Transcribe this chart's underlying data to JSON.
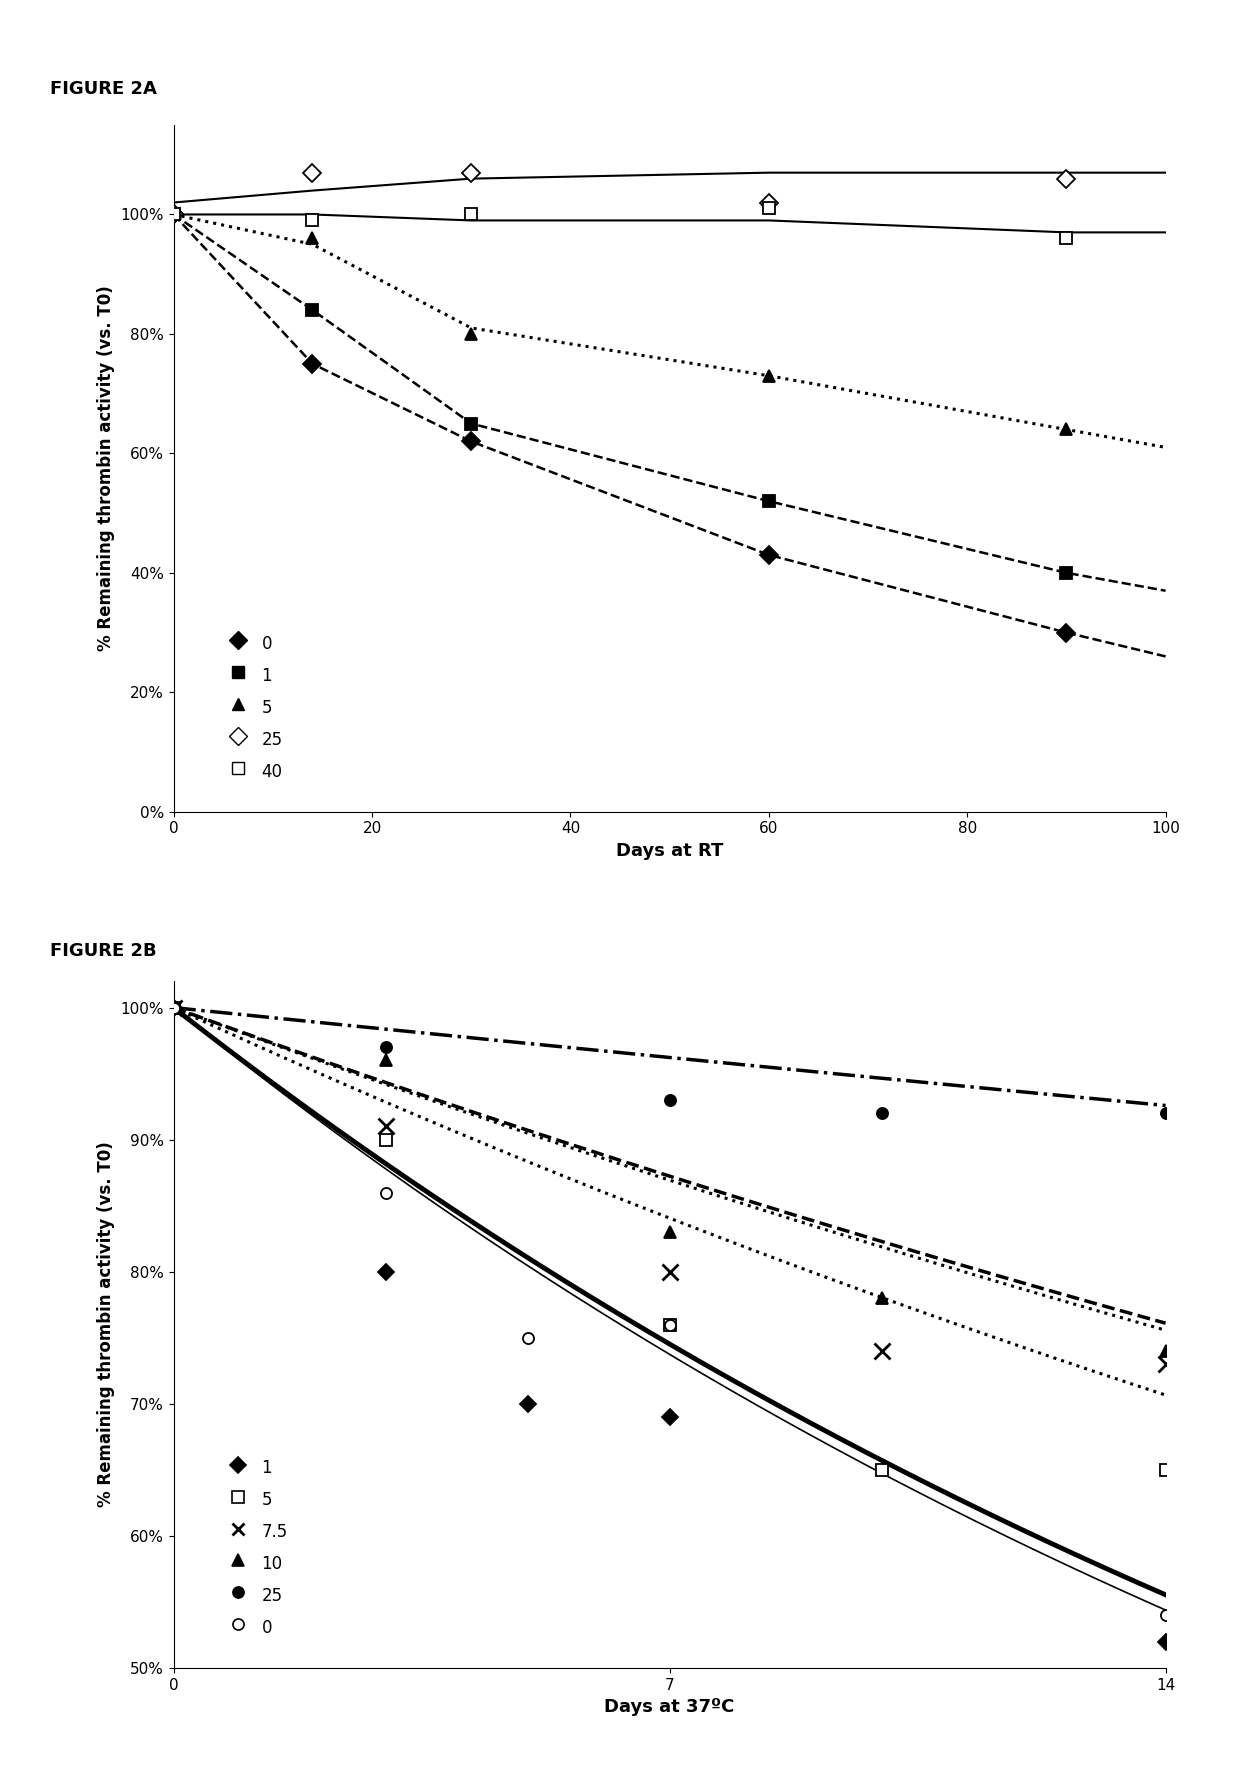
{
  "fig2a": {
    "title": "FIGURE 2A",
    "xlabel": "Days at RT",
    "ylabel": "% Remaining thrombin activity (vs. T0)",
    "xlim": [
      0,
      100
    ],
    "ylim": [
      0.0,
      1.15
    ],
    "yticks": [
      0.0,
      0.2,
      0.4,
      0.6,
      0.8,
      1.0
    ],
    "xticks": [
      0,
      20,
      40,
      60,
      80,
      100
    ],
    "series": [
      {
        "label": "0",
        "marker": "D",
        "marker_filled": true,
        "data_x": [
          0,
          14,
          30,
          60,
          90
        ],
        "data_y": [
          1.0,
          0.75,
          0.62,
          0.43,
          0.3
        ],
        "line_style": "--",
        "line_width": 1.8,
        "fit_x": [
          0,
          14,
          30,
          60,
          90,
          100
        ],
        "fit_y": [
          1.0,
          0.75,
          0.62,
          0.43,
          0.3,
          0.26
        ]
      },
      {
        "label": "1",
        "marker": "s",
        "marker_filled": true,
        "data_x": [
          0,
          14,
          30,
          60,
          90
        ],
        "data_y": [
          1.0,
          0.84,
          0.65,
          0.52,
          0.4
        ],
        "line_style": "--",
        "line_width": 1.8,
        "fit_x": [
          0,
          14,
          30,
          60,
          90,
          100
        ],
        "fit_y": [
          1.0,
          0.84,
          0.65,
          0.52,
          0.4,
          0.37
        ]
      },
      {
        "label": "5",
        "marker": "^",
        "marker_filled": true,
        "data_x": [
          0,
          14,
          30,
          60,
          90
        ],
        "data_y": [
          1.0,
          0.96,
          0.8,
          0.73,
          0.64
        ],
        "line_style": ":",
        "line_width": 2.2,
        "fit_x": [
          0,
          14,
          30,
          60,
          90,
          100
        ],
        "fit_y": [
          1.0,
          0.95,
          0.81,
          0.73,
          0.64,
          0.61
        ]
      },
      {
        "label": "25",
        "marker": "D",
        "marker_filled": false,
        "data_x": [
          0,
          14,
          30,
          60,
          90
        ],
        "data_y": [
          1.0,
          1.07,
          1.07,
          1.02,
          1.06
        ],
        "line_style": "-",
        "line_width": 1.5,
        "fit_x": [
          0,
          14,
          30,
          60,
          90,
          100
        ],
        "fit_y": [
          1.02,
          1.04,
          1.06,
          1.07,
          1.07,
          1.07
        ]
      },
      {
        "label": "40",
        "marker": "s",
        "marker_filled": false,
        "data_x": [
          0,
          14,
          30,
          60,
          90
        ],
        "data_y": [
          1.0,
          0.99,
          1.0,
          1.01,
          0.96
        ],
        "line_style": "-",
        "line_width": 1.5,
        "fit_x": [
          0,
          14,
          30,
          60,
          90,
          100
        ],
        "fit_y": [
          1.0,
          1.0,
          0.99,
          0.99,
          0.97,
          0.97
        ]
      }
    ],
    "legend": [
      {
        "label": "0",
        "marker": "D",
        "filled": true
      },
      {
        "label": "1",
        "marker": "s",
        "filled": true
      },
      {
        "label": "5",
        "marker": "^",
        "filled": true
      },
      {
        "label": "25",
        "marker": "D",
        "filled": false
      },
      {
        "label": "40",
        "marker": "s",
        "filled": false
      }
    ]
  },
  "fig2b": {
    "title": "FIGURE 2B",
    "xlabel": "Days at 37ºC",
    "ylabel": "% Remaining thrombin activity (vs. T0)",
    "xlim": [
      0,
      14
    ],
    "ylim": [
      0.5,
      1.02
    ],
    "yticks": [
      0.5,
      0.6,
      0.7,
      0.8,
      0.9,
      1.0
    ],
    "xticks": [
      0,
      7,
      14
    ],
    "series": [
      {
        "label": "25",
        "marker": "o",
        "marker_filled": true,
        "data_x": [
          0,
          3,
          7,
          10,
          14
        ],
        "data_y": [
          1.0,
          0.97,
          0.93,
          0.92,
          0.92
        ],
        "line_style": "-.",
        "line_width": 2.5,
        "fit_params": [
          1.0,
          0.0055
        ]
      },
      {
        "label": "10",
        "marker": "^",
        "marker_filled": true,
        "data_x": [
          0,
          3,
          7,
          10,
          14
        ],
        "data_y": [
          1.0,
          0.96,
          0.83,
          0.78,
          0.74
        ],
        "line_style": "--",
        "line_width": 2.5,
        "fit_params": [
          1.0,
          0.0195
        ]
      },
      {
        "label": "5",
        "marker": "s",
        "marker_filled": false,
        "data_x": [
          0,
          3,
          7,
          10,
          14
        ],
        "data_y": [
          1.0,
          0.9,
          0.76,
          0.65,
          0.65
        ],
        "line_style": ":",
        "line_width": 2.2,
        "fit_params": [
          1.0,
          0.0248
        ]
      },
      {
        "label": "7.5",
        "marker": "x",
        "marker_filled": true,
        "data_x": [
          0,
          3,
          7,
          10,
          14
        ],
        "data_y": [
          1.0,
          0.91,
          0.8,
          0.74,
          0.73
        ],
        "line_style": ":",
        "line_width": 2.2,
        "fit_params": [
          1.0,
          0.02
        ]
      },
      {
        "label": "1",
        "marker": "D",
        "marker_filled": true,
        "data_x": [
          0,
          3,
          5,
          7,
          14
        ],
        "data_y": [
          1.0,
          0.8,
          0.7,
          0.69,
          0.52
        ],
        "line_style": "-",
        "line_width": 3.5,
        "fit_params": [
          1.0,
          0.042
        ]
      },
      {
        "label": "0",
        "marker": "o",
        "marker_filled": false,
        "data_x": [
          0,
          3,
          5,
          7,
          14
        ],
        "data_y": [
          1.0,
          0.86,
          0.75,
          0.76,
          0.54
        ],
        "line_style": "-",
        "line_width": 1.2,
        "fit_params": [
          1.0,
          0.0435
        ]
      }
    ],
    "legend": [
      {
        "label": "1",
        "marker": "D",
        "filled": true,
        "size": 8
      },
      {
        "label": "5",
        "marker": "s",
        "filled": false,
        "size": 8
      },
      {
        "label": "7.5",
        "marker": "x",
        "filled": true,
        "size": 9
      },
      {
        "label": "10",
        "marker": "^",
        "filled": true,
        "size": 8
      },
      {
        "label": "25",
        "marker": "o",
        "filled": true,
        "size": 8
      },
      {
        "label": "0",
        "marker": "o",
        "filled": false,
        "size": 8
      }
    ]
  }
}
